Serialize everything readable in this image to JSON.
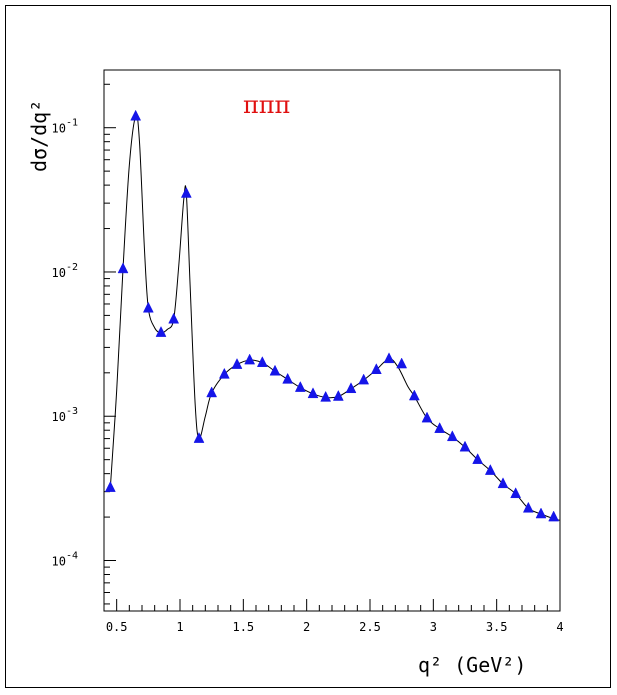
{
  "chart_data": {
    "type": "scatter",
    "title": "",
    "annotation": "πππ",
    "xlabel": "q² (GeV²)",
    "ylabel": "dσ/dq²",
    "xlim": [
      0.4,
      4.0
    ],
    "ylog": true,
    "ylim_exponent": [
      -4.35,
      -0.6
    ],
    "x_ticks": [
      "0.5",
      "1",
      "1.5",
      "2",
      "2.5",
      "3",
      "3.5",
      "4"
    ],
    "y_ticks": [
      {
        "base": "10",
        "exp": "-1"
      },
      {
        "base": "10",
        "exp": "-2"
      },
      {
        "base": "10",
        "exp": "-3"
      },
      {
        "base": "10",
        "exp": "-4"
      }
    ],
    "grid": false,
    "series": [
      {
        "type": "markers",
        "marker": "triangle-up",
        "color": "#1515e8",
        "points": [
          [
            0.45,
            0.00032
          ],
          [
            0.55,
            0.0105
          ],
          [
            0.65,
            0.12
          ],
          [
            0.75,
            0.0056
          ],
          [
            0.85,
            0.0038
          ],
          [
            0.95,
            0.0047
          ],
          [
            1.05,
            0.035
          ],
          [
            1.15,
            0.0007
          ],
          [
            1.25,
            0.00145
          ],
          [
            1.35,
            0.00195
          ],
          [
            1.45,
            0.00228
          ],
          [
            1.55,
            0.00245
          ],
          [
            1.65,
            0.00235
          ],
          [
            1.75,
            0.00205
          ],
          [
            1.85,
            0.0018
          ],
          [
            1.95,
            0.00158
          ],
          [
            2.05,
            0.00143
          ],
          [
            2.15,
            0.00135
          ],
          [
            2.25,
            0.00137
          ],
          [
            2.35,
            0.00155
          ],
          [
            2.45,
            0.00178
          ],
          [
            2.55,
            0.0021
          ],
          [
            2.65,
            0.0025
          ],
          [
            2.75,
            0.0023
          ],
          [
            2.85,
            0.00138
          ],
          [
            2.95,
            0.00097
          ],
          [
            3.05,
            0.00082
          ],
          [
            3.15,
            0.00072
          ],
          [
            3.25,
            0.00061
          ],
          [
            3.35,
            0.0005
          ],
          [
            3.45,
            0.00042
          ],
          [
            3.55,
            0.00034
          ],
          [
            3.65,
            0.00029
          ],
          [
            3.75,
            0.00023
          ],
          [
            3.85,
            0.00021
          ],
          [
            3.95,
            0.0002
          ]
        ]
      },
      {
        "type": "curve",
        "color": "#000000",
        "points": [
          [
            0.45,
            0.00032
          ],
          [
            0.5,
            0.0015
          ],
          [
            0.55,
            0.0105
          ],
          [
            0.6,
            0.055
          ],
          [
            0.65,
            0.12
          ],
          [
            0.68,
            0.08
          ],
          [
            0.72,
            0.014
          ],
          [
            0.75,
            0.0056
          ],
          [
            0.8,
            0.0041
          ],
          [
            0.85,
            0.0038
          ],
          [
            0.9,
            0.004
          ],
          [
            0.95,
            0.0047
          ],
          [
            0.99,
            0.011
          ],
          [
            1.03,
            0.032
          ],
          [
            1.05,
            0.035
          ],
          [
            1.08,
            0.008
          ],
          [
            1.12,
            0.0012
          ],
          [
            1.15,
            0.0007
          ],
          [
            1.2,
            0.001
          ],
          [
            1.25,
            0.00145
          ],
          [
            1.35,
            0.00195
          ],
          [
            1.45,
            0.00228
          ],
          [
            1.55,
            0.00245
          ],
          [
            1.65,
            0.00235
          ],
          [
            1.75,
            0.00205
          ],
          [
            1.85,
            0.0018
          ],
          [
            1.95,
            0.00158
          ],
          [
            2.05,
            0.00143
          ],
          [
            2.15,
            0.00135
          ],
          [
            2.25,
            0.00137
          ],
          [
            2.35,
            0.00155
          ],
          [
            2.45,
            0.00178
          ],
          [
            2.55,
            0.0021
          ],
          [
            2.65,
            0.0025
          ],
          [
            2.72,
            0.0022
          ],
          [
            2.8,
            0.0016
          ],
          [
            2.85,
            0.00138
          ],
          [
            2.95,
            0.00097
          ],
          [
            3.05,
            0.00082
          ],
          [
            3.15,
            0.00072
          ],
          [
            3.25,
            0.00061
          ],
          [
            3.35,
            0.0005
          ],
          [
            3.45,
            0.00042
          ],
          [
            3.55,
            0.00034
          ],
          [
            3.65,
            0.00029
          ],
          [
            3.75,
            0.00023
          ],
          [
            3.85,
            0.00021
          ],
          [
            3.95,
            0.000195
          ],
          [
            4.0,
            0.00019
          ]
        ]
      }
    ]
  }
}
